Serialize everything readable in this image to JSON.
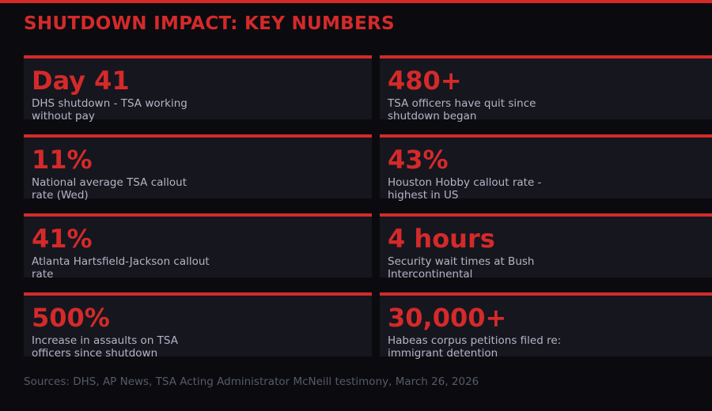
{
  "header": {
    "title": "SHUTDOWN IMPACT: KEY NUMBERS"
  },
  "cards": [
    {
      "value": "Day 41",
      "description": "DHS shutdown - TSA working without pay"
    },
    {
      "value": "480+",
      "description": "TSA officers have quit since shutdown began"
    },
    {
      "value": "11%",
      "description": "National average TSA callout rate (Wed)"
    },
    {
      "value": "43%",
      "description": "Houston Hobby callout rate - highest in US"
    },
    {
      "value": "41%",
      "description": "Atlanta Hartsfield-Jackson callout rate"
    },
    {
      "value": "4 hours",
      "description": "Security wait times at Bush Intercontinental"
    },
    {
      "value": "500%",
      "description": "Increase in assaults on TSA officers since shutdown"
    },
    {
      "value": "30,000+",
      "description": "Habeas corpus petitions filed re: immigrant detention"
    }
  ],
  "footer": {
    "sources": "Sources: DHS, AP News, TSA Acting Administrator McNeill testimony, March 26, 2026"
  }
}
